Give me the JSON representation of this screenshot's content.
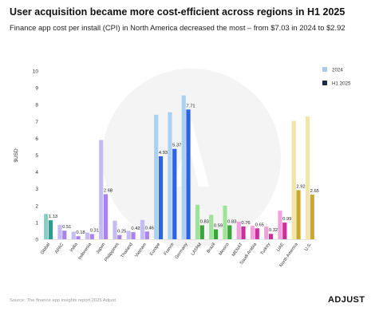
{
  "header": {
    "title": "User acquisition became more cost-efficient across regions in H1 2025",
    "subtitle": "Finance app cost per install (CPI) in North America decreased the most – from $7.03 in 2024 to $2.92"
  },
  "footer": {
    "source": "Source: The finance app insights report 2025 Adjust",
    "brand": "ADJUST"
  },
  "chart_data": {
    "type": "bar",
    "ylabel": "$USD",
    "ylim": [
      0,
      10
    ],
    "yticks": [
      0,
      1,
      2,
      3,
      4,
      5,
      6,
      7,
      8,
      9,
      10
    ],
    "grid": false,
    "legend_position": "top-right",
    "categories": [
      "Global",
      "APAC",
      "India",
      "Indonesia",
      "Japan",
      "Philippines",
      "Thailand",
      "Vietnam",
      "Europe",
      "France",
      "Germany",
      "LATAM",
      "Brazil",
      "Mexico",
      "MENAT",
      "Saudi Arabia",
      "Turkey",
      "UAE",
      "North America",
      "U.S."
    ],
    "series": [
      {
        "name": "2024",
        "values": [
          1.5,
          0.85,
          0.45,
          0.4,
          5.9,
          1.1,
          0.5,
          1.15,
          7.4,
          7.55,
          8.55,
          2.05,
          1.45,
          2.0,
          1.05,
          0.8,
          0.75,
          1.7,
          7.03,
          7.3
        ]
      },
      {
        "name": "H1 2025",
        "values": [
          1.13,
          0.51,
          0.18,
          0.31,
          2.68,
          0.25,
          0.42,
          0.46,
          4.93,
          5.37,
          7.71,
          0.83,
          0.59,
          0.83,
          0.76,
          0.65,
          0.32,
          0.99,
          2.92,
          2.65
        ]
      }
    ],
    "data_labels": [
      "1.13",
      "0.51",
      "0.18",
      "0.31",
      "2.68",
      "0.25",
      "0.42",
      "0.46",
      "4.93",
      "5.37",
      "7.71",
      "0.83",
      "0.59",
      "0.83",
      "0.76",
      "0.65",
      "0.32",
      "0.99",
      "2.92",
      "2.65"
    ],
    "colors": {
      "2024": [
        "#7fd1c2",
        "#c3bdf2",
        "#c3bdf2",
        "#c3bdf2",
        "#c3bdf2",
        "#c3bdf2",
        "#c3bdf2",
        "#c3bdf2",
        "#a9d0f5",
        "#a9d0f5",
        "#a9d0f5",
        "#9fe39a",
        "#9fe39a",
        "#9fe39a",
        "#f2a2da",
        "#f2a2da",
        "#f2a2da",
        "#f2a2da",
        "#f2e6a4",
        "#f2e6a4"
      ],
      "H1 2025": [
        "#2a9d8f",
        "#a882ee",
        "#a882ee",
        "#a882ee",
        "#a882ee",
        "#a882ee",
        "#a882ee",
        "#a882ee",
        "#2f63e6",
        "#2f63e6",
        "#2f63e6",
        "#3aa53a",
        "#3aa53a",
        "#3aa53a",
        "#c9309c",
        "#c9309c",
        "#c9309c",
        "#c9309c",
        "#c9a92c",
        "#c9a92c"
      ],
      "legend_2024": "#a9c8ee",
      "legend_2025": "#1c2b45"
    }
  }
}
